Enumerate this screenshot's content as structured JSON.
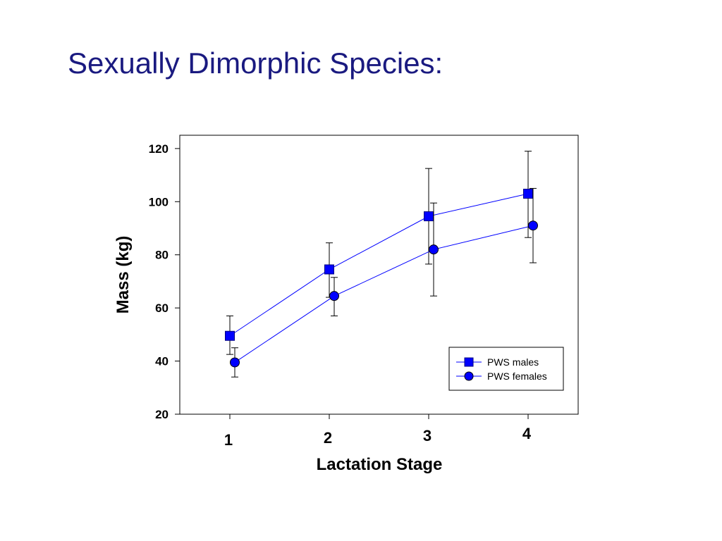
{
  "slide": {
    "title": "Sexually Dimorphic Species:"
  },
  "chart_data": {
    "type": "line",
    "title": "",
    "xlabel": "Lactation Stage",
    "ylabel": "Mass (kg)",
    "ylim": [
      20,
      125
    ],
    "yticks": [
      20,
      40,
      60,
      80,
      100,
      120
    ],
    "categories": [
      "1",
      "2",
      "3",
      "4"
    ],
    "grid": false,
    "legend_position": "bottom-right",
    "series": [
      {
        "name": "PWS males",
        "marker": "square",
        "color": "#0000ff",
        "x": [
          1,
          2,
          3,
          4
        ],
        "values": [
          49.5,
          74.5,
          94.5,
          103
        ],
        "err_upper": [
          57,
          84.5,
          112.5,
          119
        ],
        "err_lower": [
          42.5,
          64,
          76.5,
          86.5
        ]
      },
      {
        "name": "PWS females",
        "marker": "circle",
        "color": "#0000ff",
        "x": [
          1,
          2,
          3,
          4
        ],
        "values": [
          39.5,
          64.5,
          82,
          91
        ],
        "err_upper": [
          45,
          71.5,
          99.5,
          105
        ],
        "err_lower": [
          34,
          57,
          64.5,
          77
        ]
      }
    ]
  }
}
